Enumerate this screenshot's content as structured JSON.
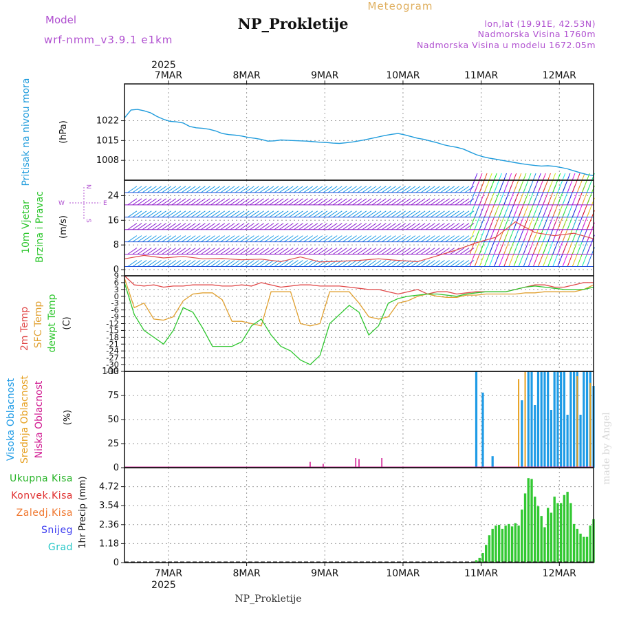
{
  "header": {
    "model_label": "Model",
    "model_name": "wrf-nmm_v3.9.1  e1km",
    "station": "NP_Prokletije",
    "meteogram": "Meteogram",
    "lonlat": "lon,lat (19.91E, 42.53N)",
    "altitude": "Nadmorska Visina 1760m",
    "model_altitude": "Nadmorska Visina u modelu 1672.05m",
    "footer_station": "NP_Prokletije",
    "watermark": "made by Angel"
  },
  "colors": {
    "pressure": "#1e9bdc",
    "temp2m": "#e04848",
    "sfc": "#e0a030",
    "dewpt": "#2ec62e",
    "cloud_high": "#1e9be6",
    "cloud_mid": "#e6a020",
    "cloud_low": "#d01890",
    "precip": "#32c832",
    "header_purple": "#b050d0",
    "meteogram_orange": "#e0b060"
  },
  "time_axis": {
    "year": "2025",
    "labels": [
      "7MAR",
      "8MAR",
      "9MAR",
      "10MAR",
      "11MAR",
      "12MAR"
    ]
  },
  "chart_data": [
    {
      "type": "line",
      "panel": "pressure",
      "ylabel_lines": [
        "Pritisak na nivou mora"
      ],
      "unit": "(hPa)",
      "yticks": [
        "1022",
        "1015",
        "1008"
      ],
      "ylim": [
        1001,
        1035
      ],
      "x": [
        0,
        2,
        4,
        6,
        8,
        10,
        12,
        14,
        16,
        18,
        20,
        22,
        24,
        26,
        28,
        30,
        32,
        34,
        36,
        38,
        40,
        42,
        44,
        46,
        48,
        50,
        52,
        54,
        56,
        58,
        60,
        62,
        64,
        66,
        68,
        70,
        72,
        74,
        76,
        78,
        80,
        82,
        84,
        86,
        88,
        90,
        92,
        94,
        96,
        98,
        100,
        102,
        104,
        106,
        108,
        110,
        112,
        114,
        116,
        118,
        120,
        122,
        124,
        126,
        128,
        130,
        132,
        134,
        136,
        138,
        140,
        142,
        144
      ],
      "series": [
        {
          "values": [
            1023,
            1025.8,
            1026,
            1025.5,
            1024.8,
            1023.5,
            1022.5,
            1021.8,
            1021.6,
            1021.2,
            1020,
            1019.5,
            1019.3,
            1019,
            1018.4,
            1017.5,
            1017.1,
            1016.9,
            1016.6,
            1016.1,
            1015.8,
            1015.4,
            1014.8,
            1014.9,
            1015.2,
            1015.1,
            1015,
            1014.9,
            1014.8,
            1014.6,
            1014.4,
            1014.3,
            1014.1,
            1014,
            1014.2,
            1014.5,
            1014.9,
            1015.3,
            1015.8,
            1016.3,
            1016.8,
            1017.2,
            1017.5,
            1017,
            1016.4,
            1015.8,
            1015.4,
            1014.8,
            1014.2,
            1013.5,
            1013,
            1012.6,
            1012,
            1011,
            1010,
            1009.3,
            1008.8,
            1008.4,
            1008,
            1007.6,
            1007.2,
            1006.8,
            1006.5,
            1006.2,
            1006,
            1006.1,
            1005.9,
            1005.5,
            1005,
            1004.3,
            1003.6,
            1003,
            1002.6
          ]
        }
      ]
    },
    {
      "type": "line",
      "panel": "wind",
      "ylabel_lines": [
        "10m Vjetar",
        "Brzina i Pravac"
      ],
      "unit": "(m/s)",
      "yticks": [
        "24",
        "16",
        "8",
        "0"
      ],
      "ylim": [
        -2,
        29
      ],
      "compass": {
        "n": "N",
        "s": "S",
        "e": "E",
        "w": "W"
      },
      "x": [
        0,
        6,
        12,
        18,
        24,
        30,
        36,
        42,
        48,
        54,
        60,
        66,
        72,
        78,
        84,
        90,
        96,
        102,
        108,
        114,
        120,
        126,
        132,
        138,
        144
      ],
      "series": [
        {
          "name": "",
          "values": [
            3.5,
            4.6,
            3.8,
            4.3,
            3.5,
            3.6,
            3.2,
            3.4,
            2.6,
            4.1,
            2.5,
            2.7,
            3,
            3.5,
            3,
            2.6,
            4.5,
            6.4,
            8.7,
            10.5,
            15.5,
            12,
            11,
            11.8,
            10
          ]
        }
      ]
    },
    {
      "type": "line",
      "panel": "temperature",
      "ylabel_lines": [
        "2m Temp",
        "SFC Temp",
        "dewpt Temp"
      ],
      "unit": "(C)",
      "yticks": [
        "9",
        "6",
        "3",
        "0",
        "-3",
        "-6",
        "-9",
        "-12",
        "-15",
        "-18",
        "-21",
        "-24",
        "-27",
        "-30",
        "-33"
      ],
      "ylim": [
        -33,
        9
      ],
      "x": [
        0,
        3,
        6,
        9,
        12,
        15,
        18,
        21,
        24,
        27,
        30,
        33,
        36,
        39,
        42,
        45,
        48,
        51,
        54,
        57,
        60,
        63,
        66,
        69,
        72,
        75,
        78,
        81,
        84,
        87,
        90,
        93,
        96,
        99,
        102,
        105,
        108,
        111,
        114,
        117,
        120,
        123,
        126,
        129,
        132,
        135,
        138,
        141,
        144
      ],
      "series": [
        {
          "name": "2m Temp",
          "values": [
            9,
            5,
            4.5,
            5,
            4,
            4.5,
            4.5,
            5,
            5,
            5,
            4.5,
            4.5,
            5,
            4.5,
            6,
            5,
            4,
            4.5,
            5,
            5,
            4.5,
            4.5,
            4.5,
            4,
            3.5,
            3,
            3,
            2,
            1,
            2,
            3,
            1,
            2,
            2,
            1,
            1.5,
            2,
            2,
            2,
            2,
            3,
            4,
            5,
            5,
            4,
            4,
            5,
            6,
            6
          ]
        },
        {
          "name": "SFC Temp",
          "values": [
            8,
            -5,
            -3,
            -10,
            -10.5,
            -9,
            -2,
            1,
            1.5,
            1.5,
            -1.5,
            -11,
            -11,
            -12,
            -13,
            2,
            2,
            2,
            -12,
            -13,
            -12,
            2,
            2,
            2,
            -3,
            -9,
            -10,
            -9,
            -3,
            -2,
            0,
            1,
            0,
            -0.5,
            -0.5,
            0.5,
            0.5,
            1,
            1,
            1,
            1,
            1.5,
            1.5,
            2,
            2,
            2,
            2,
            3,
            5
          ]
        },
        {
          "name": "dewpt Temp",
          "values": [
            6,
            -8,
            -15,
            -18,
            -21,
            -15,
            -5,
            -7,
            -14,
            -22,
            -22,
            -22,
            -20,
            -13,
            -10,
            -17,
            -22,
            -24,
            -28,
            -30,
            -26,
            -12,
            -8,
            -4,
            -7,
            -17,
            -13,
            -3,
            -1,
            0,
            0.5,
            1,
            1,
            0.5,
            0,
            1,
            1.5,
            2,
            2,
            2,
            3,
            4,
            4.5,
            4,
            3.5,
            3,
            3,
            3,
            4
          ]
        }
      ]
    },
    {
      "type": "bar",
      "panel": "clouds",
      "ylabel_lines": [
        "Visoka Oblacnost",
        "Srednja Oblacnost",
        "Niska Oblacnost"
      ],
      "unit": "(%)",
      "yticks": [
        "100",
        "75",
        "50",
        "25",
        "0"
      ],
      "ylim": [
        0,
        100
      ],
      "high_x": [
        108,
        110,
        113,
        122,
        124,
        125,
        126,
        127,
        128,
        129,
        130,
        131,
        132,
        133,
        134,
        135,
        136,
        137,
        138,
        139,
        140,
        141,
        142,
        143,
        144
      ],
      "high_values": [
        100,
        78,
        12,
        70,
        100,
        100,
        65,
        100,
        100,
        100,
        100,
        60,
        100,
        100,
        100,
        100,
        55,
        100,
        100,
        100,
        55,
        100,
        100,
        100,
        85
      ],
      "mid_x": [
        121,
        123,
        139,
        143
      ],
      "mid_values": [
        92,
        100,
        95,
        88
      ],
      "low_x": [
        57,
        61,
        71,
        72,
        79
      ],
      "low_values": [
        6,
        4,
        10,
        9,
        10
      ]
    },
    {
      "type": "bar",
      "panel": "precip",
      "unit": "1hr Precip (mm)",
      "yticks": [
        "4.72",
        "3.54",
        "2.36",
        "1.18",
        "0"
      ],
      "ylim": [
        0,
        5.9
      ],
      "legend": [
        "Ukupna Kisa",
        "Konvek.Kisa",
        "Zaledj.Kisa",
        "Snijeg",
        "Grad"
      ],
      "legend_colors": [
        "#28b428",
        "#e03030",
        "#f07830",
        "#3c3cf0",
        "#28c8c8"
      ],
      "x": [
        107,
        108,
        109,
        110,
        111,
        112,
        113,
        114,
        115,
        116,
        117,
        118,
        119,
        120,
        121,
        122,
        123,
        124,
        125,
        126,
        127,
        128,
        129,
        130,
        131,
        132,
        133,
        134,
        135,
        136,
        137,
        138,
        139,
        140,
        141,
        142,
        143,
        144
      ],
      "values": [
        0.05,
        0.15,
        0.3,
        0.6,
        1.1,
        1.7,
        2.1,
        2.3,
        2.35,
        2.1,
        2.3,
        2.4,
        2.25,
        2.45,
        2.3,
        3.3,
        4.3,
        5.25,
        5.2,
        4.1,
        3.5,
        2.9,
        2.2,
        3.4,
        3.1,
        4.1,
        3.7,
        3.7,
        4.2,
        4.4,
        3.7,
        2.4,
        2.1,
        1.8,
        1.6,
        1.6,
        2.3,
        2.7
      ]
    }
  ]
}
